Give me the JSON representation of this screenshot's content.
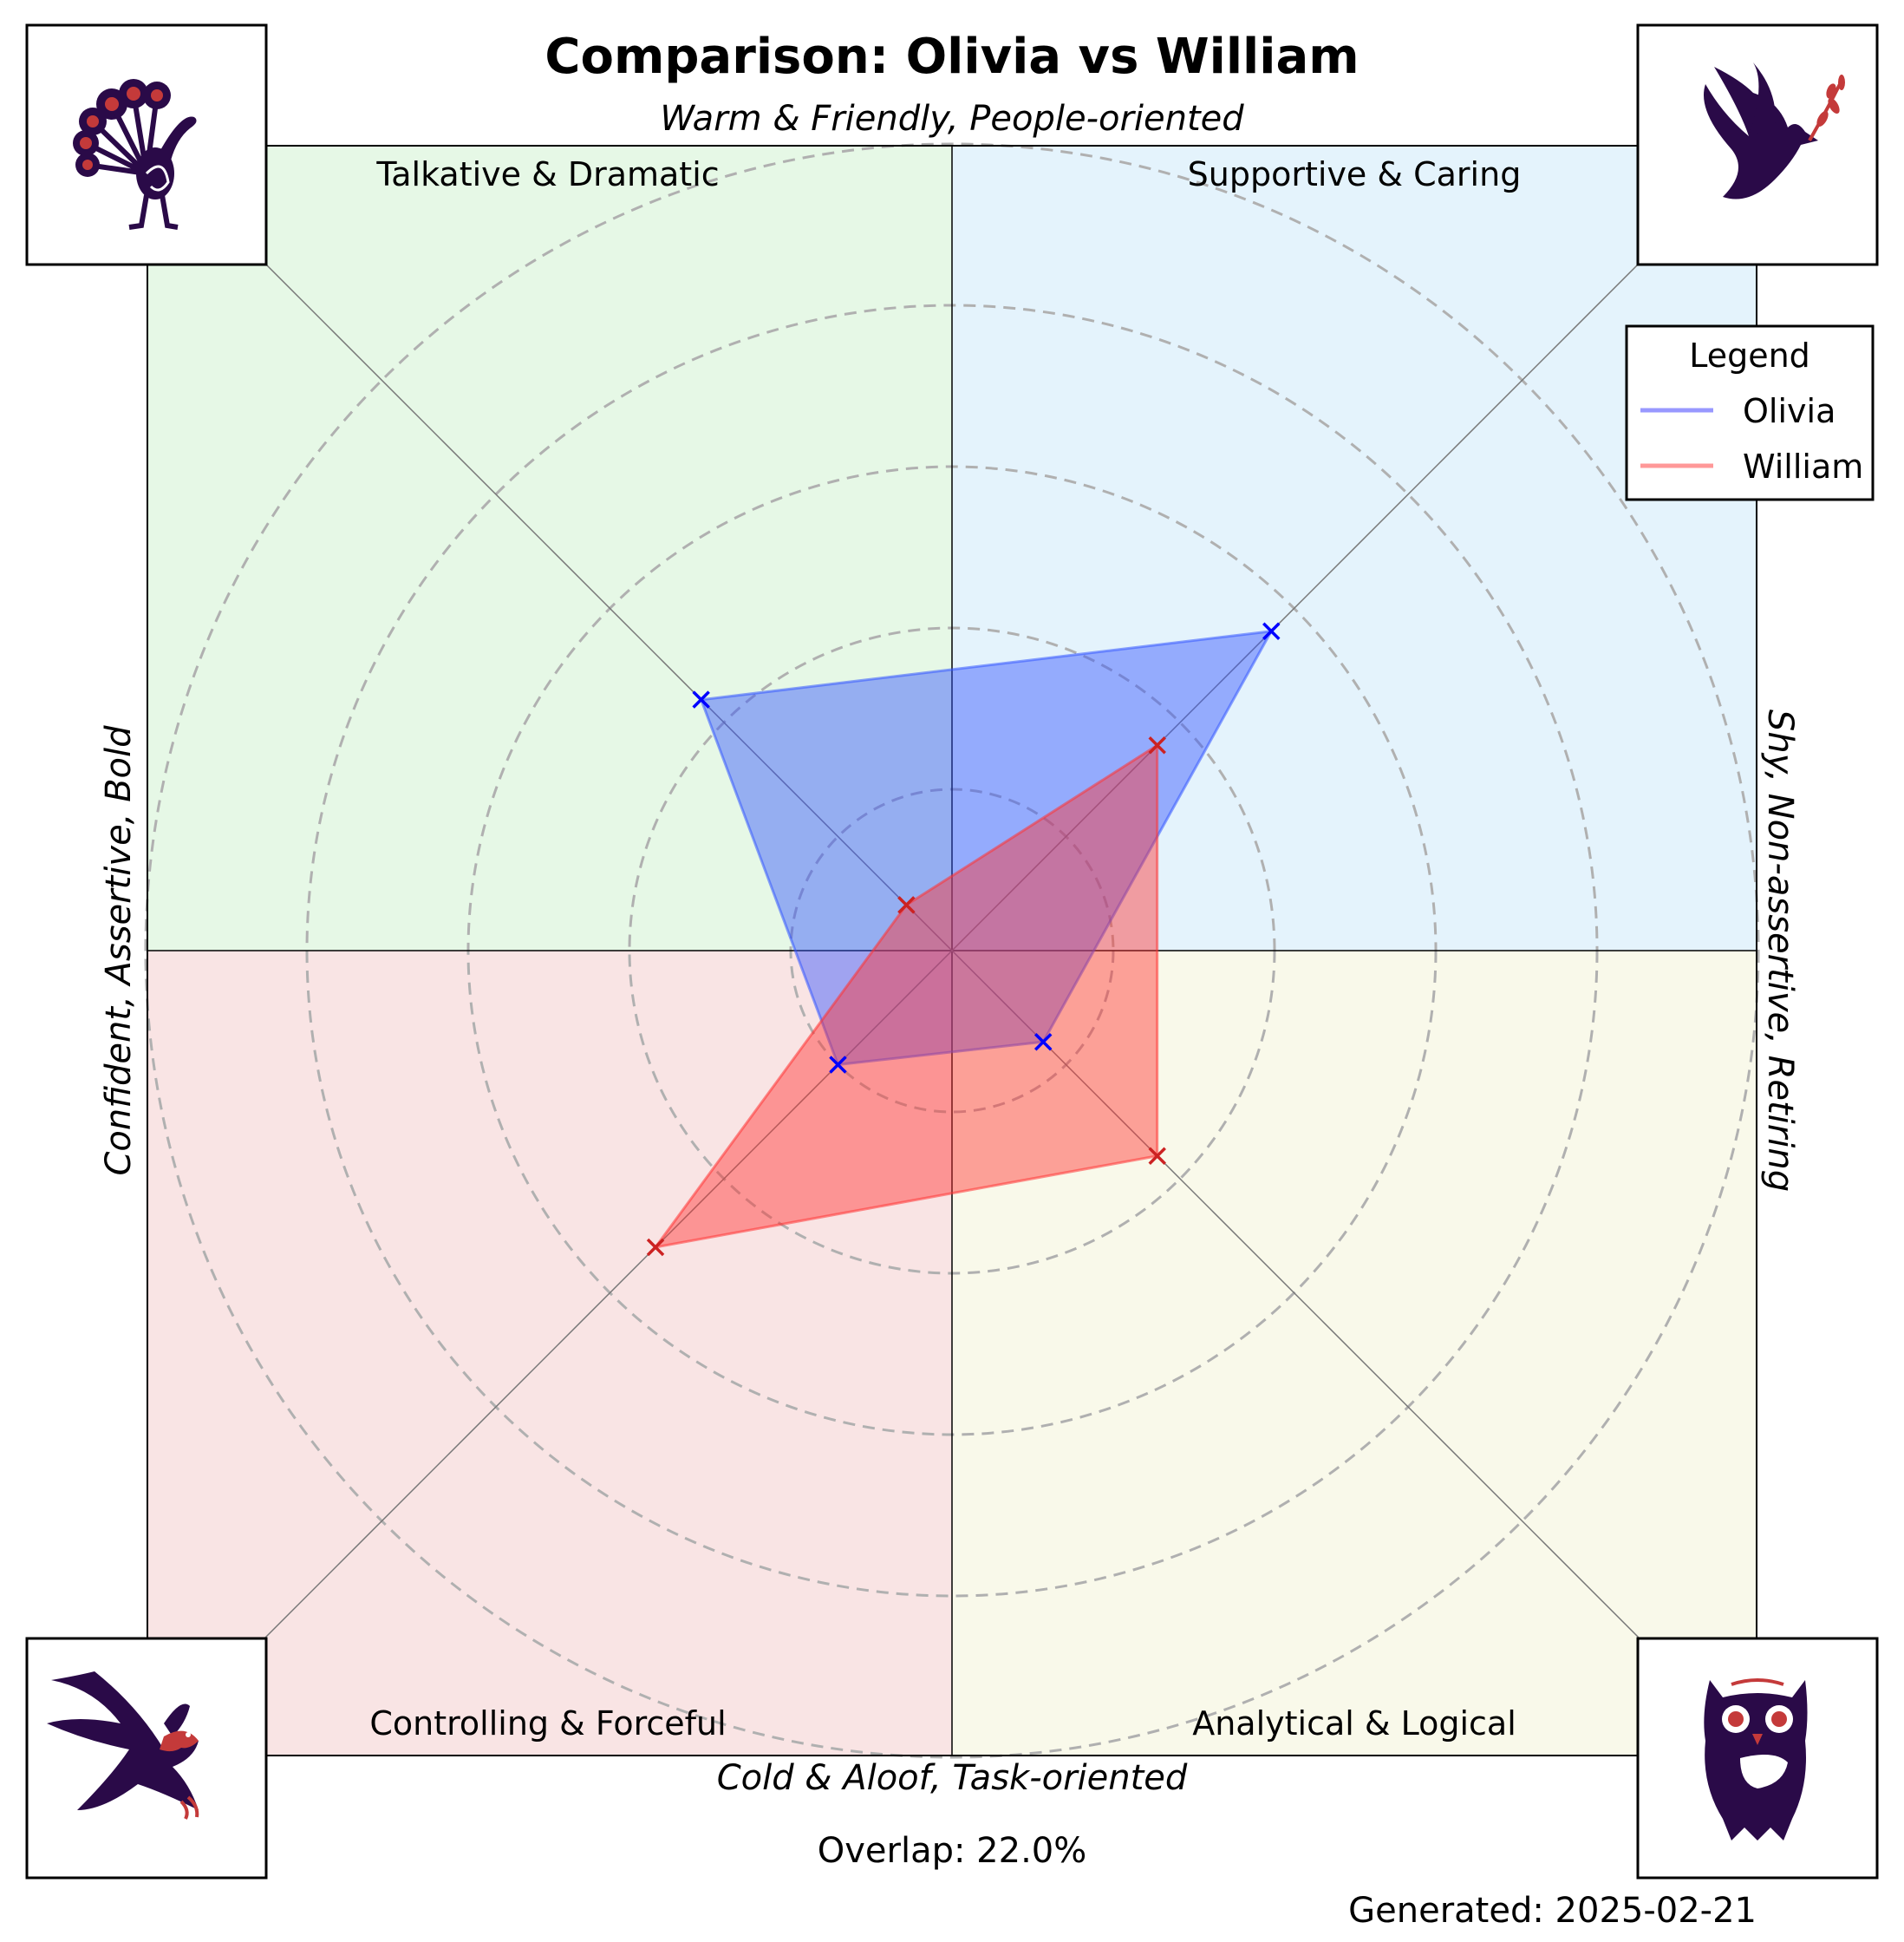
{
  "title": "Comparison: Olivia vs William",
  "axis_labels": {
    "top": "Warm & Friendly, People-oriented",
    "bottom": "Cold & Aloof, Task-oriented",
    "left": "Confident, Assertive, Bold",
    "right": "Shy, Non-assertive, Retiring"
  },
  "quadrants": {
    "top_left": {
      "label": "Talkative & Dramatic",
      "color": "#e6f8e6"
    },
    "top_right": {
      "label": "Supportive & Caring",
      "color": "#e4f3fc"
    },
    "bottom_left": {
      "label": "Controlling & Forceful",
      "color": "#f9e4e4"
    },
    "bottom_right": {
      "label": "Analytical & Logical",
      "color": "#f9f9ea"
    }
  },
  "icons": {
    "top_left": "peacock-icon",
    "top_right": "dove-icon",
    "bottom_left": "eagle-icon",
    "bottom_right": "owl-icon"
  },
  "legend": {
    "title": "Legend",
    "entries": [
      {
        "label": "Olivia",
        "color": "#0000ff"
      },
      {
        "label": "William",
        "color": "#ff0000"
      }
    ]
  },
  "overlap_text": "Overlap: 22.0%",
  "generated_text": "Generated: 2025-02-21",
  "chart_data": {
    "type": "radar",
    "title": "Comparison: Olivia vs William",
    "axes": [
      "Supportive & Caring",
      "Talkative & Dramatic",
      "Controlling & Forceful",
      "Analytical & Logical"
    ],
    "axis_angles_deg": [
      45,
      135,
      225,
      315
    ],
    "radial_range": [
      0,
      5
    ],
    "grid_rings": [
      1,
      2,
      3,
      4,
      5
    ],
    "series": [
      {
        "name": "Olivia",
        "color": "#0000ff",
        "fill": "#3355ff",
        "values": [
          2.8,
          2.2,
          1.0,
          0.8
        ]
      },
      {
        "name": "William",
        "color": "#cc2222",
        "fill": "#ff3333",
        "values": [
          1.8,
          0.4,
          2.6,
          1.8
        ]
      }
    ],
    "legend_position": "upper-right"
  }
}
